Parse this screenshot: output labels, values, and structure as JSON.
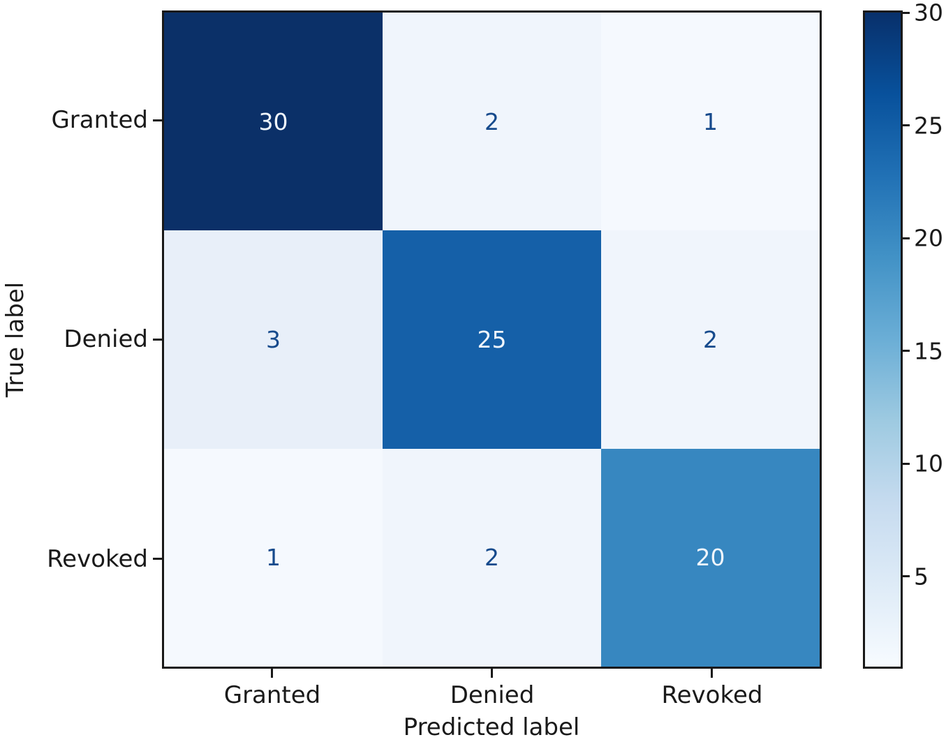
{
  "chart_data": {
    "type": "heatmap",
    "subtype": "confusion_matrix",
    "title": "",
    "xlabel": "Predicted label",
    "ylabel": "True label",
    "x_tick_labels": [
      "Granted",
      "Denied",
      "Revoked"
    ],
    "y_tick_labels": [
      "Granted",
      "Denied",
      "Revoked"
    ],
    "matrix": [
      [
        30,
        2,
        1
      ],
      [
        3,
        25,
        2
      ],
      [
        1,
        2,
        20
      ]
    ],
    "colormap": "Blues",
    "vmin": 1,
    "vmax": 30,
    "grid": false,
    "legend_position": "colorbar-right",
    "cells": [
      {
        "true_label": "Granted",
        "predicted_label": "Granted",
        "value": 30,
        "bg": "#0b3068",
        "fg": "#f0f6fc"
      },
      {
        "true_label": "Granted",
        "predicted_label": "Denied",
        "value": 2,
        "bg": "#f0f5fc",
        "fg": "#164a8c"
      },
      {
        "true_label": "Granted",
        "predicted_label": "Revoked",
        "value": 1,
        "bg": "#f5f9fe",
        "fg": "#164a8c"
      },
      {
        "true_label": "Denied",
        "predicted_label": "Granted",
        "value": 3,
        "bg": "#e8eff9",
        "fg": "#164a8c"
      },
      {
        "true_label": "Denied",
        "predicted_label": "Denied",
        "value": 25,
        "bg": "#1560a8",
        "fg": "#f0f6fc"
      },
      {
        "true_label": "Denied",
        "predicted_label": "Revoked",
        "value": 2,
        "bg": "#f0f5fc",
        "fg": "#164a8c"
      },
      {
        "true_label": "Revoked",
        "predicted_label": "Granted",
        "value": 1,
        "bg": "#f5f9fe",
        "fg": "#164a8c"
      },
      {
        "true_label": "Revoked",
        "predicted_label": "Denied",
        "value": 2,
        "bg": "#f0f5fc",
        "fg": "#164a8c"
      },
      {
        "true_label": "Revoked",
        "predicted_label": "Revoked",
        "value": 20,
        "bg": "#3787c0",
        "fg": "#f0f6fc"
      }
    ],
    "colorbar": {
      "ticks": [
        30,
        25,
        20,
        15,
        10,
        5
      ],
      "gradient_stops_bottom_to_top": [
        "#f7fbff",
        "#deebf7",
        "#c6dbef",
        "#9ecae1",
        "#6baed6",
        "#4292c6",
        "#2171b5",
        "#08519c",
        "#08306b"
      ]
    },
    "accent_colors": {
      "dark_text": "#164a8c",
      "light_text": "#f0f6fc",
      "spine": "#191919"
    }
  }
}
